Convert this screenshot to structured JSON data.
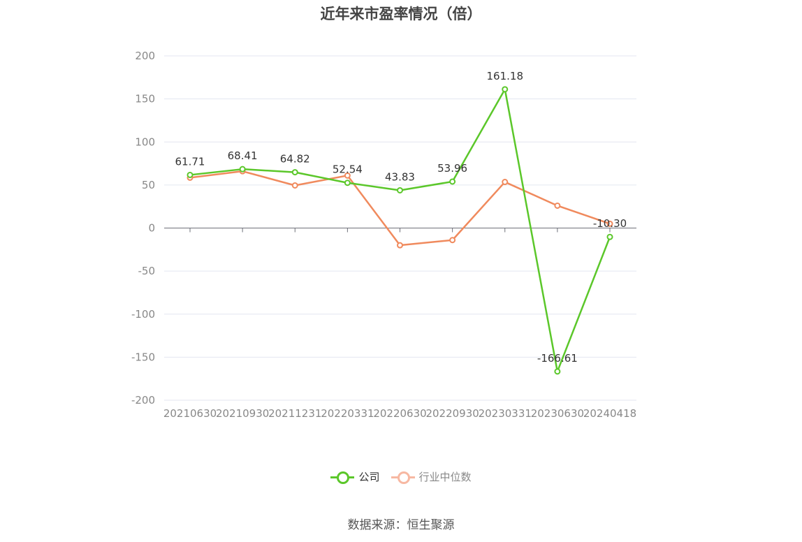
{
  "chart_data": {
    "type": "line",
    "title": "近年来市盈率情况（倍）",
    "xlabel": "",
    "ylabel": "",
    "categories": [
      "20210630",
      "20210930",
      "20211231",
      "20220331",
      "20220630",
      "20220930",
      "20230331",
      "20230630",
      "20240418"
    ],
    "ylim": [
      -200,
      200
    ],
    "yticks": [
      200,
      150,
      100,
      50,
      0,
      -50,
      -100,
      -150,
      -200
    ],
    "grid": true,
    "legend_position": "bottom",
    "series": [
      {
        "name": "公司",
        "color": "#5bc72a",
        "values": [
          61.71,
          68.41,
          64.82,
          52.54,
          43.83,
          53.96,
          161.18,
          -166.61,
          -10.3
        ],
        "labels": [
          "61.71",
          "68.41",
          "64.82",
          "52.54",
          "43.83",
          "53.96",
          "161.18",
          "-166.61",
          "-10.30"
        ]
      },
      {
        "name": "行业中位数",
        "color": "#f08a5d",
        "values": [
          58.5,
          66,
          49.5,
          61,
          -20,
          -14,
          53.5,
          26,
          5
        ]
      }
    ]
  },
  "source": "数据来源：恒生聚源"
}
